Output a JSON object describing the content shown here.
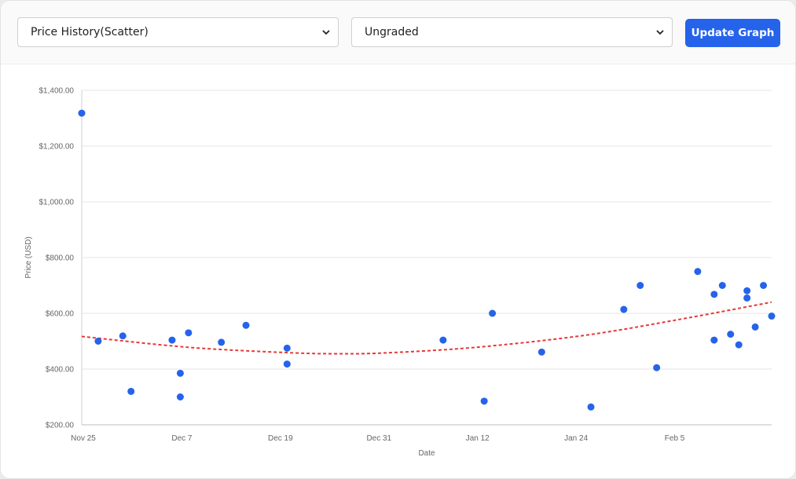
{
  "controls": {
    "chart_select": "Price History(Scatter)",
    "grade_select": "Ungraded",
    "update_button": "Update Graph"
  },
  "colors": {
    "accent": "#2563eb",
    "point": "#2563eb",
    "trend": "#e53935",
    "grid": "#e5e5e5"
  },
  "chart_data": {
    "type": "scatter",
    "xlabel": "Date",
    "ylabel": "Price (USD)",
    "ylim": [
      200,
      1400
    ],
    "xlim": [
      "2024-11-25",
      "2025-02-17"
    ],
    "grid": true,
    "y_ticks": [
      "$200.00",
      "$400.00",
      "$600.00",
      "$800.00",
      "$1,000.00",
      "$1,200.00",
      "$1,400.00"
    ],
    "x_ticks": [
      "Nov 25",
      "Dec 7",
      "Dec 19",
      "Dec 31",
      "Jan 12",
      "Jan 24",
      "Feb 5"
    ],
    "series": [
      {
        "points": [
          {
            "x": "2024-11-25",
            "y": 1318
          },
          {
            "x": "2024-11-27",
            "y": 500
          },
          {
            "x": "2024-11-30",
            "y": 519
          },
          {
            "x": "2024-12-01",
            "y": 320
          },
          {
            "x": "2024-12-06",
            "y": 504
          },
          {
            "x": "2024-12-07",
            "y": 385
          },
          {
            "x": "2024-12-07",
            "y": 300
          },
          {
            "x": "2024-12-08",
            "y": 530
          },
          {
            "x": "2024-12-12",
            "y": 496
          },
          {
            "x": "2024-12-15",
            "y": 557
          },
          {
            "x": "2024-12-20",
            "y": 475
          },
          {
            "x": "2024-12-20",
            "y": 418
          },
          {
            "x": "2025-01-08",
            "y": 504
          },
          {
            "x": "2025-01-13",
            "y": 285
          },
          {
            "x": "2025-01-14",
            "y": 600
          },
          {
            "x": "2025-01-20",
            "y": 461
          },
          {
            "x": "2025-01-26",
            "y": 264
          },
          {
            "x": "2025-01-30",
            "y": 614
          },
          {
            "x": "2025-02-01",
            "y": 700
          },
          {
            "x": "2025-02-03",
            "y": 405
          },
          {
            "x": "2025-02-08",
            "y": 750
          },
          {
            "x": "2025-02-10",
            "y": 668
          },
          {
            "x": "2025-02-10",
            "y": 504
          },
          {
            "x": "2025-02-11",
            "y": 700
          },
          {
            "x": "2025-02-12",
            "y": 525
          },
          {
            "x": "2025-02-13",
            "y": 487
          },
          {
            "x": "2025-02-14",
            "y": 681
          },
          {
            "x": "2025-02-14",
            "y": 655
          },
          {
            "x": "2025-02-15",
            "y": 551
          },
          {
            "x": "2025-02-16",
            "y": 700
          },
          {
            "x": "2025-02-17",
            "y": 590
          }
        ]
      }
    ],
    "trendline": {
      "style": "dashed",
      "points": [
        {
          "x": "2024-11-25",
          "y": 517
        },
        {
          "x": "2024-12-08",
          "y": 478
        },
        {
          "x": "2024-12-20",
          "y": 459
        },
        {
          "x": "2024-12-26",
          "y": 455
        },
        {
          "x": "2025-01-01",
          "y": 458
        },
        {
          "x": "2025-01-12",
          "y": 478
        },
        {
          "x": "2025-01-25",
          "y": 520
        },
        {
          "x": "2025-02-05",
          "y": 574
        },
        {
          "x": "2025-02-17",
          "y": 640
        }
      ]
    }
  }
}
